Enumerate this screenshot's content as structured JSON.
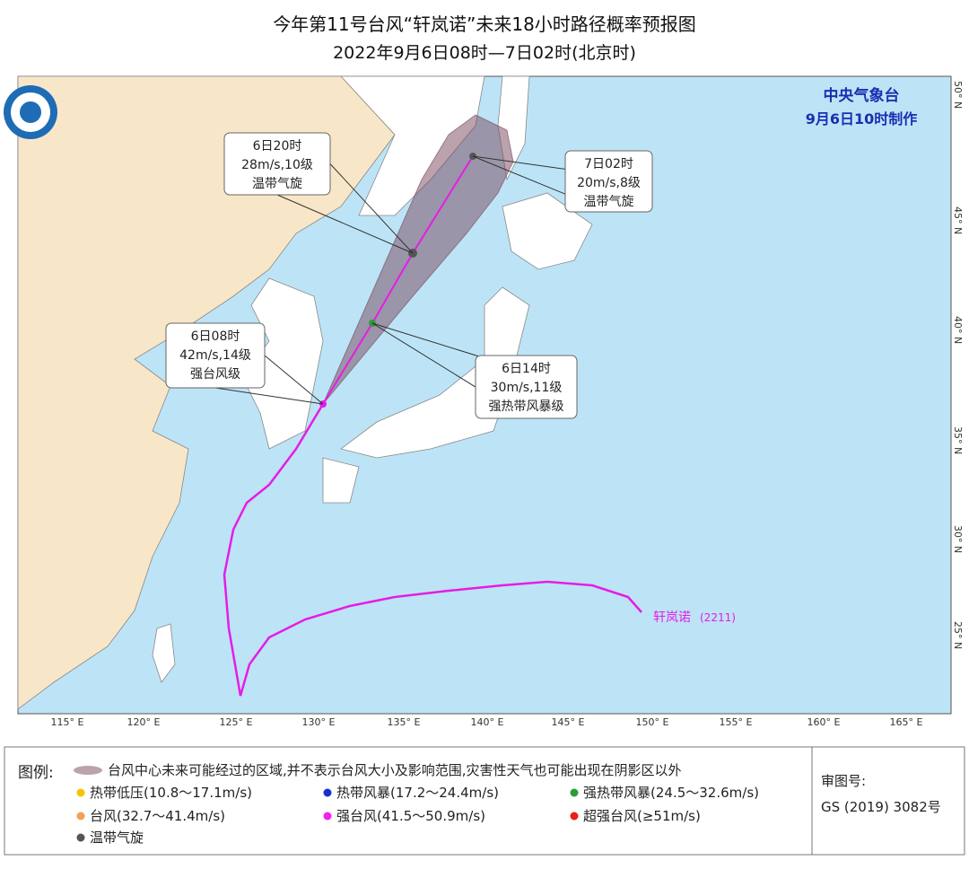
{
  "header": {
    "title": "今年第11号台风“轩岚诺”未来18小时路径概率预报图",
    "subtitle": "2022年9月6日08时—7日02时(北京时)"
  },
  "agency": {
    "name": "中央气象台",
    "issued": "9月6日10时制作"
  },
  "callouts": [
    {
      "lines": [
        "6日20时",
        "28m/s,10级",
        "温带气旋"
      ]
    },
    {
      "lines": [
        "7日02时",
        "20m/s,8级",
        "温带气旋"
      ]
    },
    {
      "lines": [
        "6日08时",
        "42m/s,14级",
        "强台风级"
      ]
    },
    {
      "lines": [
        "6日14时",
        "30m/s,11级",
        "强热带风暴级"
      ]
    }
  ],
  "typhoon_label": {
    "name": "轩岚诺",
    "code": "(2211)"
  },
  "axes": {
    "lon_labels": [
      "115° E",
      "120° E",
      "125° E",
      "130° E",
      "135° E",
      "140° E",
      "145° E",
      "150° E",
      "155° E",
      "160° E",
      "165° E"
    ],
    "lat_labels": [
      "25° N",
      "30° N",
      "35° N",
      "40° N",
      "45° N",
      "50° N"
    ]
  },
  "legend": {
    "title": "图例:",
    "cone": "台风中心未来可能经过的区域,并不表示台风大小及影响范围,灾害性天气也可能出现在阴影区以外",
    "items": [
      {
        "label": "热带低压(10.8～17.1m/s)",
        "color": "#f5c400"
      },
      {
        "label": "热带风暴(17.2～24.4m/s)",
        "color": "#1a2fd0"
      },
      {
        "label": "强热带风暴(24.5～32.6m/s)",
        "color": "#2f9a3a"
      },
      {
        "label": "台风(32.7～41.4m/s)",
        "color": "#f5a050"
      },
      {
        "label": "强台风(41.5～50.9m/s)",
        "color": "#f020f0"
      },
      {
        "label": "超强台风(≥51m/s)",
        "color": "#e8201c"
      },
      {
        "label": "温带气旋",
        "color": "#555555"
      }
    ]
  },
  "approval": {
    "label": "审图号:",
    "number": "GS (2019) 3082号"
  }
}
